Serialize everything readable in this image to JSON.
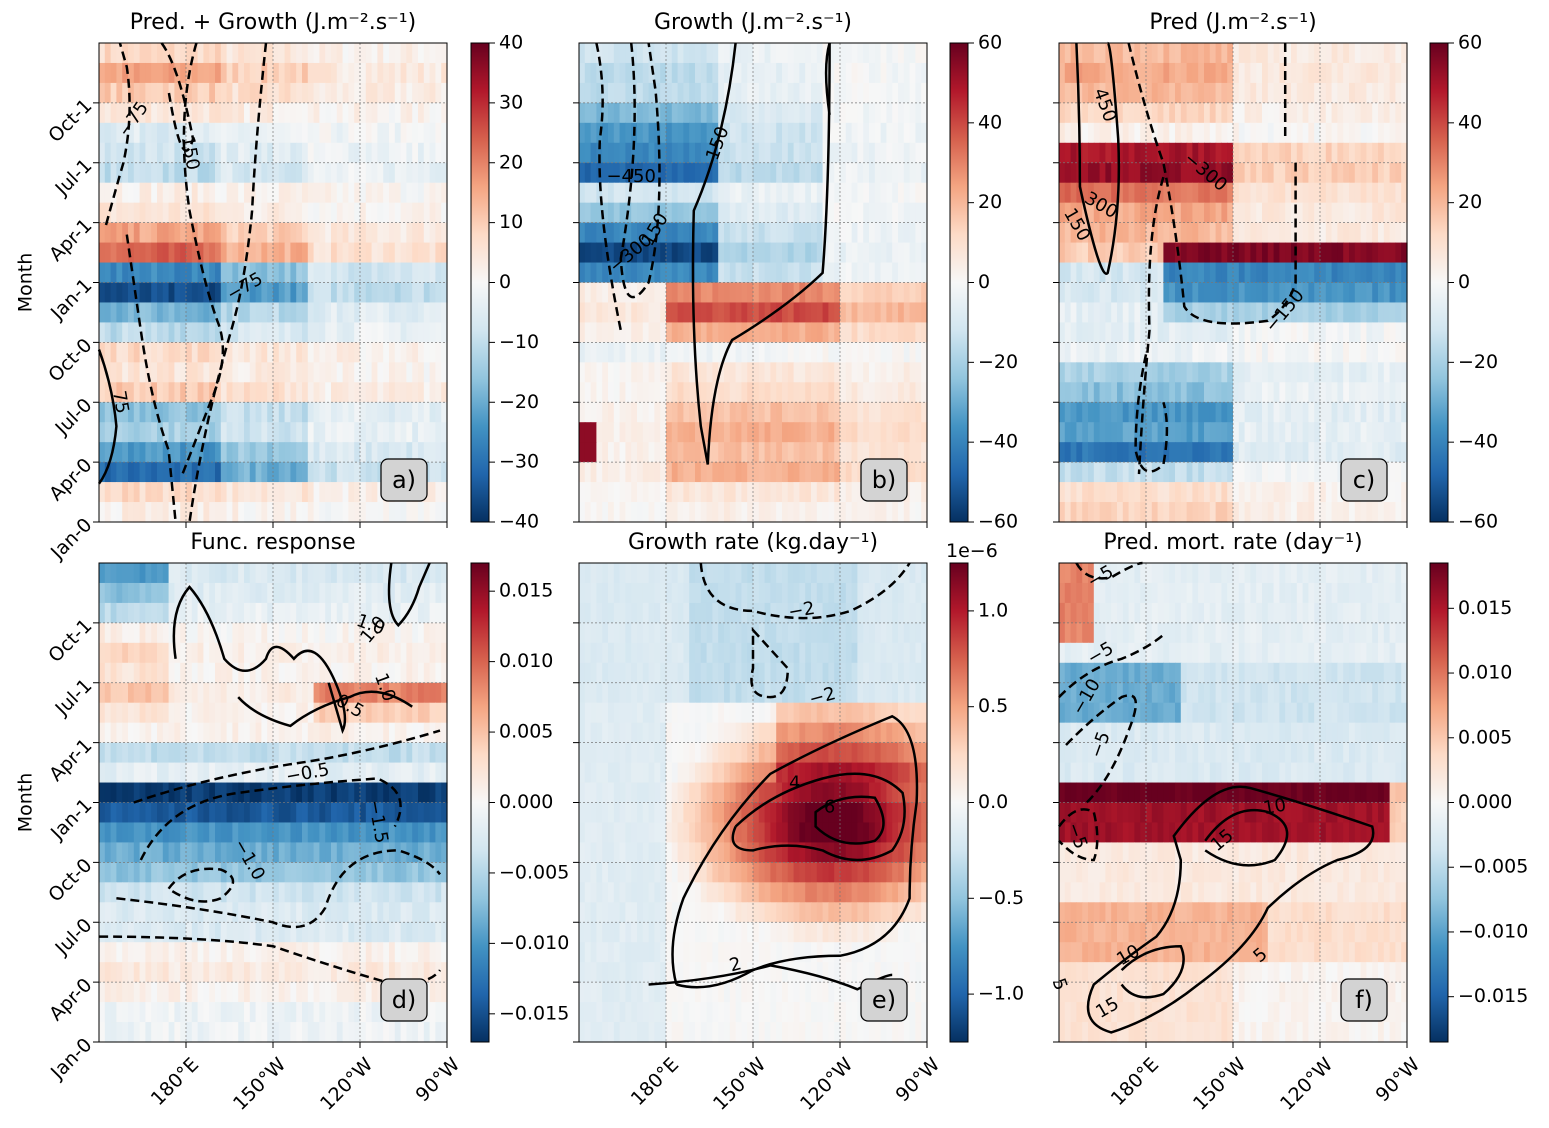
{
  "figure": {
    "ylabel": "Month",
    "y_ticks": [
      "Jan-0",
      "Apr-0",
      "Jul-0",
      "Oct-0",
      "Jan-1",
      "Apr-1",
      "Jul-1",
      "Oct-1"
    ],
    "x_ticks": [
      "180°E",
      "150°W",
      "120°W",
      "90°W"
    ]
  },
  "chart_data": [
    {
      "type": "heatmap",
      "panel": "a)",
      "title": "Pred. + Growth (J.m⁻².s⁻¹)",
      "xlabel": "",
      "ylabel": "Month",
      "colorbar": {
        "min": -40,
        "max": 40,
        "ticks": [
          -40,
          -30,
          -20,
          -10,
          0,
          10,
          20,
          30,
          40
        ],
        "cmap": "RdBu_r"
      },
      "contour_labels": [
        "-75",
        "150",
        "-75",
        "75"
      ],
      "grid": true
    },
    {
      "type": "heatmap",
      "panel": "b)",
      "title": "Growth (J.m⁻².s⁻¹)",
      "xlabel": "",
      "ylabel": "",
      "colorbar": {
        "min": -60,
        "max": 60,
        "ticks": [
          -60,
          -40,
          -20,
          0,
          20,
          40,
          60
        ],
        "cmap": "RdBu_r"
      },
      "contour_labels": [
        "150",
        "-450",
        "-300",
        "150"
      ],
      "grid": true
    },
    {
      "type": "heatmap",
      "panel": "c)",
      "title": "Pred (J.m⁻².s⁻¹)",
      "xlabel": "",
      "ylabel": "",
      "colorbar": {
        "min": -60,
        "max": 60,
        "ticks": [
          -60,
          -40,
          -20,
          0,
          20,
          40,
          60
        ],
        "cmap": "RdBu_r"
      },
      "contour_labels": [
        "450",
        "-300",
        "300",
        "150",
        "-150"
      ],
      "grid": true
    },
    {
      "type": "heatmap",
      "panel": "d)",
      "title": "Func. response",
      "xlabel": "",
      "ylabel": "Month",
      "colorbar": {
        "min": -0.017,
        "max": 0.017,
        "ticks": [
          -0.015,
          -0.01,
          -0.005,
          0.0,
          0.005,
          0.01,
          0.015
        ],
        "tick_labels": [
          "−0.015",
          "−0.010",
          "−0.005",
          "0.000",
          "0.005",
          "0.010",
          "0.015"
        ],
        "cmap": "RdBu_r"
      },
      "contour_labels": [
        "1.0",
        "1.0",
        "1.0",
        "0.5",
        "-0.5",
        "-1.5",
        "-1.0"
      ],
      "grid": true
    },
    {
      "type": "heatmap",
      "panel": "e)",
      "title": "Growth rate (kg.day⁻¹)",
      "xlabel": "",
      "ylabel": "",
      "colorbar": {
        "min": -1.25,
        "max": 1.25,
        "ticks": [
          -1.0,
          -0.5,
          0.0,
          0.5,
          1.0
        ],
        "tick_labels": [
          "−1.0",
          "−0.5",
          "0.0",
          "0.5",
          "1.0"
        ],
        "offset": "1e−6",
        "cmap": "RdBu_r"
      },
      "contour_labels": [
        "-2",
        "-2",
        "4",
        "6",
        "2"
      ],
      "grid": true
    },
    {
      "type": "heatmap",
      "panel": "f)",
      "title": "Pred. mort. rate (day⁻¹)",
      "xlabel": "",
      "ylabel": "",
      "colorbar": {
        "min": -0.0185,
        "max": 0.0185,
        "ticks": [
          -0.015,
          -0.01,
          -0.005,
          0.0,
          0.005,
          0.01,
          0.015
        ],
        "tick_labels": [
          "−0.015",
          "−0.010",
          "−0.005",
          "0.000",
          "0.005",
          "0.010",
          "0.015"
        ],
        "cmap": "RdBu_r"
      },
      "contour_labels": [
        "-5",
        "-5",
        "-10",
        "-5",
        "-5",
        "10",
        "15",
        "10",
        "5",
        "15",
        "5"
      ],
      "grid": true
    }
  ]
}
